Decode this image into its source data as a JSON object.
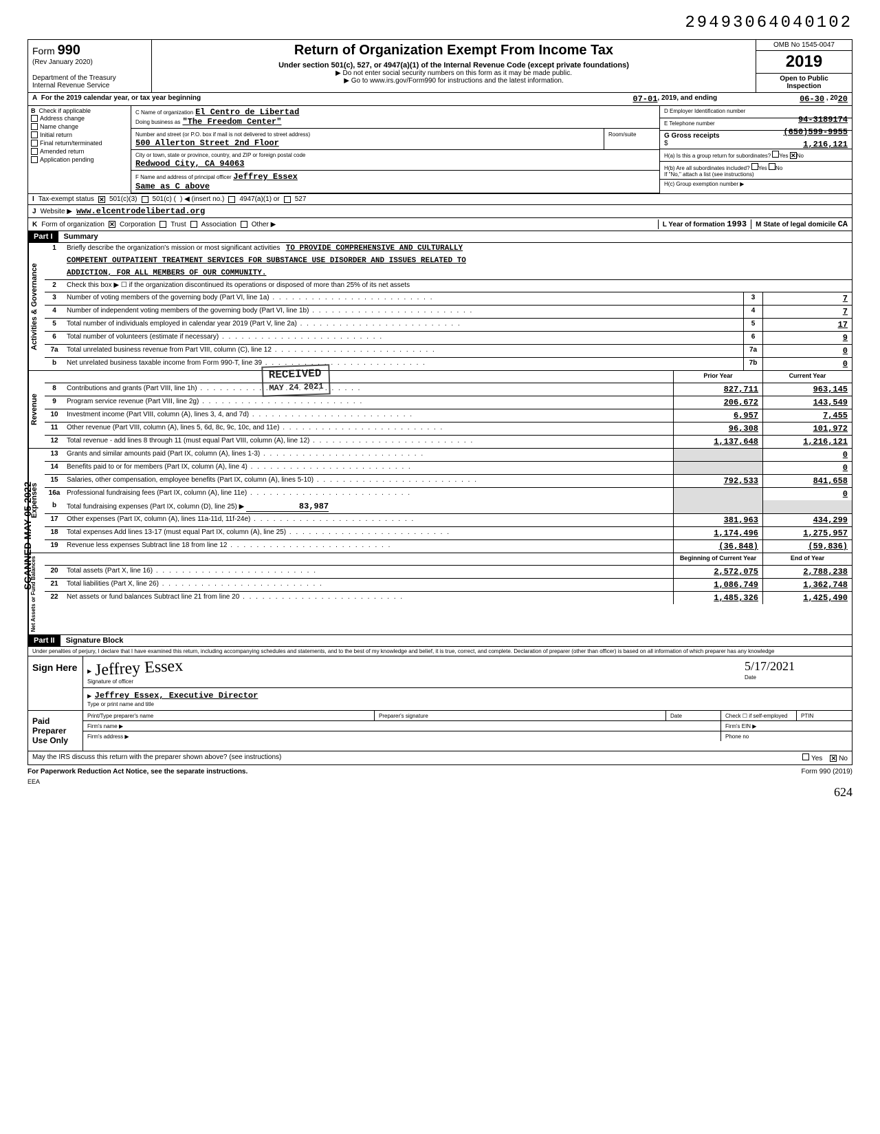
{
  "doc_number": "29493064040102",
  "header": {
    "form_label": "Form",
    "form_number": "990",
    "rev": "(Rev January 2020)",
    "dept": "Department of the Treasury",
    "irs": "Internal Revenue Service",
    "title": "Return of Organization Exempt From Income Tax",
    "subtitle": "Under section 501(c), 527, or 4947(a)(1) of the Internal Revenue Code (except private foundations)",
    "note1": "▶ Do not enter social security numbers on this form as it may be made public.",
    "note2": "▶ Go to www.irs.gov/Form990 for instructions and the latest information.",
    "omb": "OMB No 1545-0047",
    "year": "2019",
    "open": "Open to Public",
    "inspection": "Inspection"
  },
  "row_a": {
    "label_a": "A",
    "text1": "For the 2019 calendar year, or tax year beginning",
    "begin": "07-01",
    "mid": ", 2019, and ending",
    "end": "06-30",
    "endyear": ", 2020"
  },
  "block_b": {
    "label_b": "B",
    "check_label": "Check if applicable",
    "items": [
      "Address change",
      "Name change",
      "Initial return",
      "Final return/terminated",
      "Amended return",
      "Application pending"
    ],
    "c_label": "C  Name of organization",
    "c_name": "El Centro de Libertad",
    "dba_label": "Doing business as",
    "dba": "\"The Freedom Center\"",
    "addr_label": "Number and street (or P.O. box if mail is not delivered to street address)",
    "addr": "500 Allerton Street 2nd Floor",
    "room_label": "Room/suite",
    "city_label": "City or town, state or province, country, and ZIP or foreign postal code",
    "city": "Redwood City, CA 94063",
    "f_label": "F  Name and address of principal officer",
    "f_name": "Jeffrey Essex",
    "f_addr": "Same as C above",
    "d_label": "D  Employer Identification number",
    "d_val": "94-3189174",
    "e_label": "E  Telephone number",
    "e_val": "(650)599-9955",
    "g_label": "G  Gross receipts",
    "g_dollar": "$",
    "g_val": "1,216,121",
    "ha_label": "H(a) Is this a group return for subordinates?",
    "hb_label": "H(b) Are all subordinates included?",
    "h_yes": "Yes",
    "h_no": "No",
    "h_note": "If \"No,\" attach a list (see instructions)",
    "hc_label": "H(c)  Group exemption number"
  },
  "row_i": {
    "label": "I",
    "text": "Tax-exempt status",
    "opt1": "501(c)(3)",
    "opt2": "501(c) (",
    "opt2b": ")  ◀ (insert no.)",
    "opt3": "4947(a)(1) or",
    "opt4": "527"
  },
  "row_j": {
    "label": "J",
    "text": "Website ▶",
    "val": "www.elcentrodelibertad.org"
  },
  "row_k": {
    "label": "K",
    "text": "Form of organization",
    "opt1": "Corporation",
    "opt2": "Trust",
    "opt3": "Association",
    "opt4": "Other ▶",
    "l_label": "L  Year of formation",
    "l_val": "1993",
    "m_label": "M  State of legal domicile",
    "m_val": "CA"
  },
  "part1": {
    "header": "Part I",
    "title": "Summary"
  },
  "activities": {
    "label": "Activities & Governance",
    "line1_num": "1",
    "line1_text": "Briefly describe the organization's mission or most significant activities",
    "mission1": "TO PROVIDE COMPREHENSIVE AND CULTURALLY",
    "mission2": "COMPETENT OUTPATIENT TREATMENT SERVICES FOR SUBSTANCE USE DISORDER AND ISSUES RELATED TO",
    "mission3": "ADDICTION, FOR ALL MEMBERS OF OUR COMMUNITY.",
    "line2_num": "2",
    "line2_text": "Check this box ▶ ☐ if the organization discontinued its operations or disposed of more than 25% of its net assets",
    "lines": [
      {
        "num": "3",
        "text": "Number of voting members of the governing body (Part VI, line 1a)",
        "box": "3",
        "val": "7"
      },
      {
        "num": "4",
        "text": "Number of independent voting members of the governing body (Part VI, line 1b)",
        "box": "4",
        "val": "7"
      },
      {
        "num": "5",
        "text": "Total number of individuals employed in calendar year 2019 (Part V, line 2a)",
        "box": "5",
        "val": "17"
      },
      {
        "num": "6",
        "text": "Total number of volunteers (estimate if necessary)",
        "box": "6",
        "val": "9"
      },
      {
        "num": "7a",
        "text": "Total unrelated business revenue from Part VIII, column (C), line 12",
        "box": "7a",
        "val": "0"
      },
      {
        "num": "b",
        "text": "Net unrelated business taxable income from Form 990-T, line 39",
        "box": "7b",
        "val": "0"
      }
    ]
  },
  "revenue": {
    "label": "Revenue",
    "prior_header": "Prior Year",
    "current_header": "Current Year",
    "lines": [
      {
        "num": "8",
        "text": "Contributions and grants (Part VIII, line 1h)",
        "prior": "827,711",
        "current": "963,145"
      },
      {
        "num": "9",
        "text": "Program service revenue (Part VIII, line 2g)",
        "prior": "206,672",
        "current": "143,549"
      },
      {
        "num": "10",
        "text": "Investment income (Part VIII, column (A), lines 3, 4, and 7d)",
        "prior": "6,957",
        "current": "7,455"
      },
      {
        "num": "11",
        "text": "Other revenue (Part VIII, column (A), lines 5, 6d, 8c, 9c, 10c, and 11e)",
        "prior": "96,308",
        "current": "101,972"
      },
      {
        "num": "12",
        "text": "Total revenue - add lines 8 through 11 (must equal Part VIII, column (A), line 12)",
        "prior": "1,137,648",
        "current": "1,216,121"
      }
    ]
  },
  "expenses": {
    "label": "Expenses",
    "lines": [
      {
        "num": "13",
        "text": "Grants and similar amounts paid (Part IX, column (A), lines 1-3)",
        "prior": "",
        "current": "0"
      },
      {
        "num": "14",
        "text": "Benefits paid to or for members (Part IX, column (A), line 4)",
        "prior": "",
        "current": "0"
      },
      {
        "num": "15",
        "text": "Salaries, other compensation, employee benefits (Part IX, column (A), lines 5-10)",
        "prior": "792,533",
        "current": "841,658"
      },
      {
        "num": "16a",
        "text": "Professional fundraising fees (Part IX, column (A), line 11e)",
        "prior": "",
        "current": "0"
      }
    ],
    "line_b_num": "b",
    "line_b_text": "Total fundraising expenses (Part IX, column (D), line 25)  ▶",
    "line_b_val": "83,987",
    "lines2": [
      {
        "num": "17",
        "text": "Other expenses (Part IX, column (A), lines 11a-11d, 11f-24e)",
        "prior": "381,963",
        "current": "434,299"
      },
      {
        "num": "18",
        "text": "Total expenses  Add lines 13-17 (must equal Part IX, column (A), line 25)",
        "prior": "1,174,496",
        "current": "1,275,957"
      },
      {
        "num": "19",
        "text": "Revenue less expenses  Subtract line 18 from line 12",
        "prior": "(36,848)",
        "current": "(59,836)"
      }
    ]
  },
  "netassets": {
    "label": "Net Assets or Fund Balances",
    "begin_header": "Beginning of Current Year",
    "end_header": "End of Year",
    "lines": [
      {
        "num": "20",
        "text": "Total assets (Part X, line 16)",
        "prior": "2,572,075",
        "current": "2,788,238"
      },
      {
        "num": "21",
        "text": "Total liabilities (Part X, line 26)",
        "prior": "1,086,749",
        "current": "1,362,748"
      },
      {
        "num": "22",
        "text": "Net assets or fund balances  Subtract line 21 from line 20",
        "prior": "1,485,326",
        "current": "1,425,490"
      }
    ]
  },
  "part2": {
    "header": "Part II",
    "title": "Signature Block",
    "perjury": "Under penalties of perjury, I declare that I have examined this return, including accompanying schedules and statements, and to the best of my knowledge and belief, it is true, correct, and complete. Declaration of preparer (other than officer) is based on all information of which preparer has any knowledge"
  },
  "sign": {
    "here_label": "Sign Here",
    "sig_label": "Signature of officer",
    "date_label": "Date",
    "date_val": "5/17/2021",
    "name": "Jeffrey Essex, Executive Director",
    "name_label": "Type or print name and title"
  },
  "paid": {
    "label": "Paid Preparer Use Only",
    "col1": "Print/Type preparer's name",
    "col2": "Preparer's signature",
    "col3": "Date",
    "col4": "Check ☐ if self-employed",
    "col5": "PTIN",
    "firm_name": "Firm's name  ▶",
    "firm_ein": "Firm's EIN  ▶",
    "firm_addr": "Firm's address  ▶",
    "phone": "Phone no"
  },
  "footer": {
    "discuss": "May the IRS discuss this return with the preparer shown above? (see instructions)",
    "yes": "Yes",
    "no": "No",
    "paperwork": "For Paperwork Reduction Act Notice, see the separate instructions.",
    "form": "Form 990 (2019)",
    "eea": "EEA",
    "handnum": "624"
  },
  "stamps": {
    "received": "RECEIVED",
    "received_date": "MAY 24 2021",
    "scanned": "SCANNED MAY 05 2022"
  },
  "colors": {
    "black": "#000000",
    "white": "#ffffff",
    "shade": "#dddddd"
  }
}
